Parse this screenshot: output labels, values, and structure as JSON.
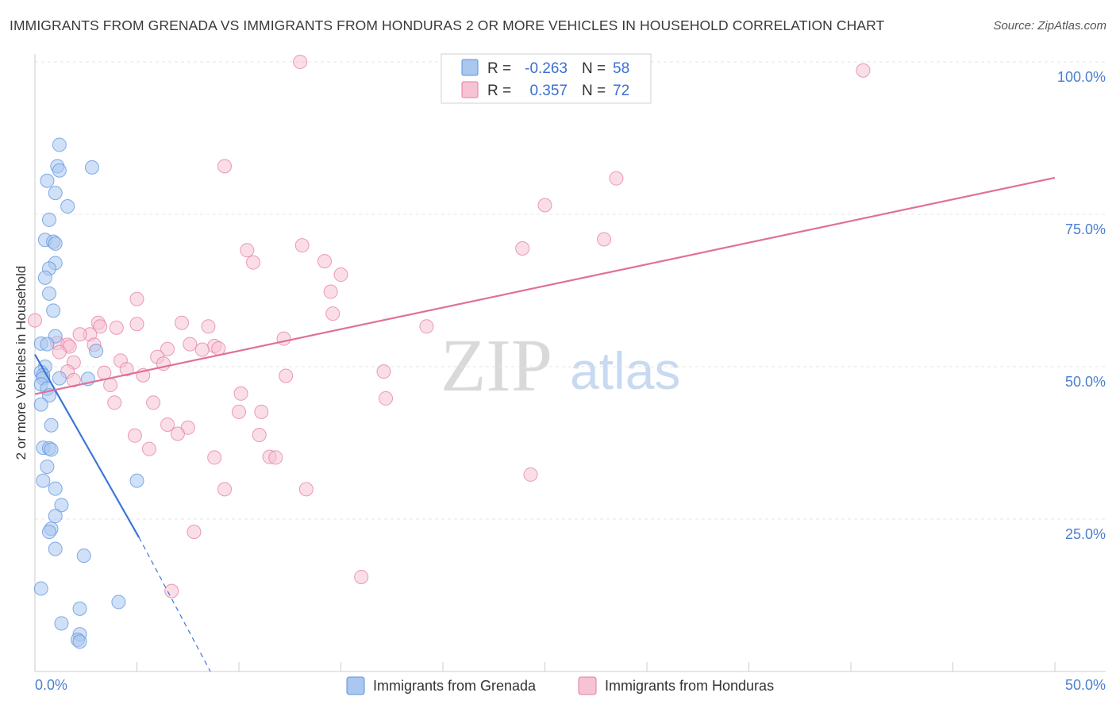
{
  "title": "IMMIGRANTS FROM GRENADA VS IMMIGRANTS FROM HONDURAS 2 OR MORE VEHICLES IN HOUSEHOLD CORRELATION CHART",
  "source": "Source: ZipAtlas.com",
  "watermark": {
    "zip": "ZIP",
    "atlas": "atlas"
  },
  "chart_data": {
    "type": "scatter",
    "title": "IMMIGRANTS FROM GRENADA VS IMMIGRANTS FROM HONDURAS 2 OR MORE VEHICLES IN HOUSEHOLD CORRELATION CHART",
    "xlabel": "",
    "ylabel": "2 or more Vehicles in Household",
    "xlim": [
      0,
      50
    ],
    "ylim": [
      0,
      100
    ],
    "x_tick_labels": [
      "0.0%",
      "50.0%"
    ],
    "y_ticks": [
      25,
      50,
      75,
      100
    ],
    "y_tick_labels": [
      "25.0%",
      "50.0%",
      "75.0%",
      "100.0%"
    ],
    "grid": true,
    "legend_position": "top-center",
    "series": [
      {
        "name": "Immigrants from Grenada",
        "color": "#5b93e0",
        "fill": "#a9c7ef",
        "r": "-0.263",
        "n": "58",
        "r_label": "R =",
        "n_label": "N =",
        "trend": {
          "x0": 0.0,
          "y0": 52.0,
          "x1": 5.1,
          "y1": 22.0,
          "dash_x1": 8.6,
          "dash_y1": 0.0
        },
        "points": [
          [
            1.2,
            86.4
          ],
          [
            1.1,
            82.9
          ],
          [
            2.8,
            82.7
          ],
          [
            1.2,
            82.2
          ],
          [
            0.6,
            80.5
          ],
          [
            1.0,
            78.5
          ],
          [
            1.6,
            76.3
          ],
          [
            0.7,
            74.1
          ],
          [
            0.5,
            70.8
          ],
          [
            0.9,
            70.5
          ],
          [
            1.0,
            70.2
          ],
          [
            1.0,
            67.0
          ],
          [
            0.7,
            66.1
          ],
          [
            0.5,
            64.6
          ],
          [
            0.7,
            62.0
          ],
          [
            0.9,
            59.2
          ],
          [
            1.0,
            55.0
          ],
          [
            0.3,
            53.8
          ],
          [
            0.6,
            53.7
          ],
          [
            3.0,
            52.6
          ],
          [
            0.5,
            50.0
          ],
          [
            0.3,
            49.1
          ],
          [
            0.4,
            48.6
          ],
          [
            0.4,
            48.1
          ],
          [
            1.2,
            48.1
          ],
          [
            2.6,
            48.0
          ],
          [
            0.3,
            47.1
          ],
          [
            0.6,
            46.4
          ],
          [
            0.7,
            45.3
          ],
          [
            0.3,
            43.8
          ],
          [
            0.8,
            40.4
          ],
          [
            0.4,
            36.7
          ],
          [
            0.7,
            36.6
          ],
          [
            0.8,
            36.4
          ],
          [
            0.6,
            33.6
          ],
          [
            0.4,
            31.3
          ],
          [
            1.0,
            30.0
          ],
          [
            5.0,
            31.3
          ],
          [
            1.3,
            27.3
          ],
          [
            1.0,
            25.5
          ],
          [
            0.8,
            23.4
          ],
          [
            0.7,
            22.9
          ],
          [
            1.0,
            20.1
          ],
          [
            2.4,
            19.0
          ],
          [
            0.3,
            13.6
          ],
          [
            4.1,
            11.4
          ],
          [
            2.2,
            10.3
          ],
          [
            1.3,
            7.9
          ],
          [
            2.2,
            6.1
          ],
          [
            2.1,
            5.2
          ],
          [
            2.2,
            4.9
          ]
        ]
      },
      {
        "name": "Immigrants from Honduras",
        "color": "#e57ba0",
        "fill": "#f6c3d4",
        "r": "0.357",
        "n": "72",
        "r_label": "R =",
        "n_label": "N =",
        "trend": {
          "x0": 0.0,
          "y0": 45.5,
          "x1": 50.0,
          "y1": 81.0
        },
        "points": [
          [
            13.0,
            100.0
          ],
          [
            40.6,
            98.6
          ],
          [
            9.3,
            82.9
          ],
          [
            28.5,
            80.9
          ],
          [
            25.0,
            76.5
          ],
          [
            27.9,
            70.9
          ],
          [
            13.1,
            69.9
          ],
          [
            23.9,
            69.4
          ],
          [
            10.4,
            69.1
          ],
          [
            10.7,
            67.1
          ],
          [
            14.2,
            67.3
          ],
          [
            15.0,
            65.1
          ],
          [
            14.5,
            62.3
          ],
          [
            5.0,
            61.1
          ],
          [
            14.6,
            58.7
          ],
          [
            0.0,
            57.6
          ],
          [
            3.1,
            57.2
          ],
          [
            5.0,
            57.0
          ],
          [
            7.2,
            57.2
          ],
          [
            8.5,
            56.6
          ],
          [
            4.0,
            56.4
          ],
          [
            3.2,
            56.6
          ],
          [
            19.2,
            56.6
          ],
          [
            2.7,
            55.3
          ],
          [
            2.2,
            55.3
          ],
          [
            12.2,
            54.6
          ],
          [
            1.1,
            53.9
          ],
          [
            1.6,
            53.6
          ],
          [
            7.6,
            53.7
          ],
          [
            8.8,
            53.4
          ],
          [
            9.0,
            53.0
          ],
          [
            1.7,
            53.3
          ],
          [
            2.9,
            53.6
          ],
          [
            6.5,
            52.9
          ],
          [
            1.2,
            52.4
          ],
          [
            8.2,
            52.8
          ],
          [
            6.0,
            51.6
          ],
          [
            4.2,
            51.0
          ],
          [
            6.3,
            50.5
          ],
          [
            1.9,
            50.7
          ],
          [
            4.5,
            49.6
          ],
          [
            1.6,
            49.2
          ],
          [
            3.4,
            49.0
          ],
          [
            17.1,
            49.2
          ],
          [
            5.3,
            48.6
          ],
          [
            12.3,
            48.5
          ],
          [
            1.9,
            47.8
          ],
          [
            3.7,
            47.0
          ],
          [
            10.1,
            45.6
          ],
          [
            17.2,
            44.8
          ],
          [
            5.8,
            44.1
          ],
          [
            3.9,
            44.1
          ],
          [
            10.0,
            42.6
          ],
          [
            11.1,
            42.6
          ],
          [
            6.5,
            40.5
          ],
          [
            7.5,
            40.0
          ],
          [
            7.0,
            39.0
          ],
          [
            4.9,
            38.7
          ],
          [
            11.0,
            38.8
          ],
          [
            5.6,
            36.5
          ],
          [
            8.8,
            35.1
          ],
          [
            11.5,
            35.2
          ],
          [
            11.8,
            35.1
          ],
          [
            24.3,
            32.3
          ],
          [
            9.3,
            29.9
          ],
          [
            13.3,
            29.9
          ],
          [
            7.8,
            22.9
          ],
          [
            16.0,
            15.5
          ],
          [
            6.7,
            13.2
          ]
        ]
      }
    ]
  },
  "bottom_legend": [
    "Immigrants from Grenada",
    "Immigrants from Honduras"
  ]
}
